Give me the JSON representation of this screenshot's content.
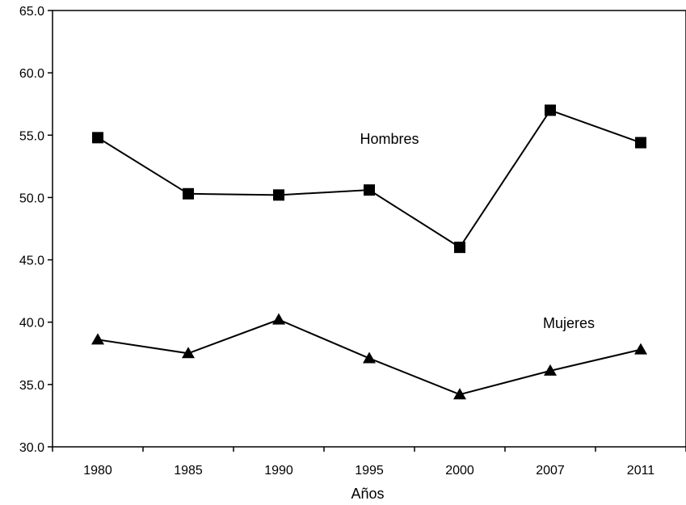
{
  "chart_data": {
    "type": "line",
    "title": "",
    "xlabel": "Años",
    "ylabel": "",
    "ylim": [
      30.0,
      65.0
    ],
    "yticks": [
      "30.0",
      "35.0",
      "40.0",
      "45.0",
      "50.0",
      "55.0",
      "60.0",
      "65.0"
    ],
    "categories": [
      "1980",
      "1985",
      "1990",
      "1995",
      "2000",
      "2007",
      "2011"
    ],
    "grid": false,
    "legend": "none",
    "series": [
      {
        "name": "Hombres",
        "marker": "square",
        "color": "#000000",
        "values": [
          54.8,
          50.3,
          50.2,
          50.6,
          46.0,
          57.0,
          54.4
        ]
      },
      {
        "name": "Mujeres",
        "marker": "triangle",
        "color": "#000000",
        "values": [
          38.6,
          37.5,
          40.2,
          37.1,
          34.2,
          36.1,
          37.8
        ]
      }
    ]
  }
}
